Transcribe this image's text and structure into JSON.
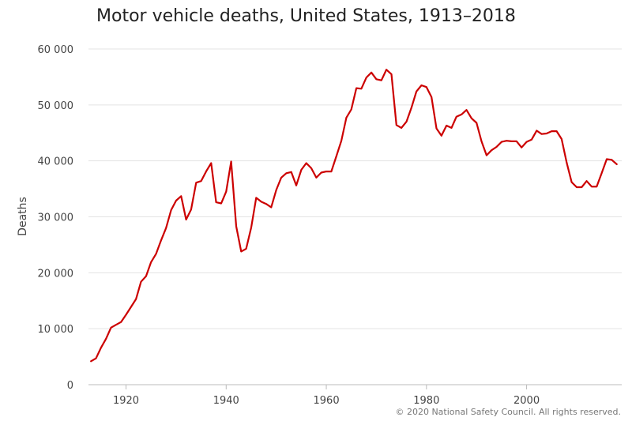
{
  "chart_data": {
    "type": "line",
    "title": "Motor vehicle deaths, United States, 1913–2018",
    "ylabel": "Deaths",
    "xlabel": "",
    "xlim": [
      1912.5,
      2019
    ],
    "ylim": [
      0,
      60000
    ],
    "x_ticks": [
      1920,
      1940,
      1960,
      1980,
      2000
    ],
    "x_tick_labels": [
      "1920",
      "1940",
      "1960",
      "1980",
      "2000"
    ],
    "y_ticks": [
      0,
      10000,
      20000,
      30000,
      40000,
      50000,
      60000
    ],
    "y_tick_labels": [
      "0",
      "10 000",
      "20 000",
      "30 000",
      "40 000",
      "50 000",
      "60 000"
    ],
    "grid": "horizontal",
    "credit": "© 2020 National Safety Council. All rights reserved.",
    "series": [
      {
        "color": "#cc0000",
        "x": [
          1913,
          1914,
          1915,
          1916,
          1917,
          1918,
          1919,
          1920,
          1921,
          1922,
          1923,
          1924,
          1925,
          1926,
          1927,
          1928,
          1929,
          1930,
          1931,
          1932,
          1933,
          1934,
          1935,
          1936,
          1937,
          1938,
          1939,
          1940,
          1941,
          1942,
          1943,
          1944,
          1945,
          1946,
          1947,
          1948,
          1949,
          1950,
          1951,
          1952,
          1953,
          1954,
          1955,
          1956,
          1957,
          1958,
          1959,
          1960,
          1961,
          1962,
          1963,
          1964,
          1965,
          1966,
          1967,
          1968,
          1969,
          1970,
          1971,
          1972,
          1973,
          1974,
          1975,
          1976,
          1977,
          1978,
          1979,
          1980,
          1981,
          1982,
          1983,
          1984,
          1985,
          1986,
          1987,
          1988,
          1989,
          1990,
          1991,
          1992,
          1993,
          1994,
          1995,
          1996,
          1997,
          1998,
          1999,
          2000,
          2001,
          2002,
          2003,
          2004,
          2005,
          2006,
          2007,
          2008,
          2009,
          2010,
          2011,
          2012,
          2013,
          2014,
          2015,
          2016,
          2017,
          2018
        ],
        "values": [
          4200,
          4700,
          6600,
          8200,
          10200,
          10700,
          11200,
          12500,
          13900,
          15300,
          18400,
          19400,
          21900,
          23400,
          25800,
          28000,
          31200,
          32900,
          33700,
          29500,
          31300,
          36100,
          36400,
          38100,
          39600,
          32600,
          32400,
          34500,
          39900,
          28300,
          23800,
          24300,
          28100,
          33400,
          32700,
          32300,
          31700,
          34800,
          37000,
          37800,
          38000,
          35600,
          38400,
          39600,
          38700,
          37000,
          37900,
          38100,
          38100,
          40800,
          43600,
          47700,
          49200,
          53000,
          52900,
          54900,
          55800,
          54600,
          54400,
          56300,
          55500,
          46400,
          45900,
          47000,
          49500,
          52400,
          53500,
          53200,
          51400,
          45800,
          44500,
          46300,
          45900,
          47900,
          48300,
          49100,
          47600,
          46800,
          43500,
          41000,
          41900,
          42500,
          43400,
          43600,
          43500,
          43500,
          42400,
          43400,
          43800,
          45400,
          44800,
          44900,
          45300,
          45300,
          43900,
          39700,
          36200,
          35300,
          35300,
          36400,
          35400,
          35400,
          37800,
          40300,
          40200,
          39400
        ]
      }
    ]
  }
}
